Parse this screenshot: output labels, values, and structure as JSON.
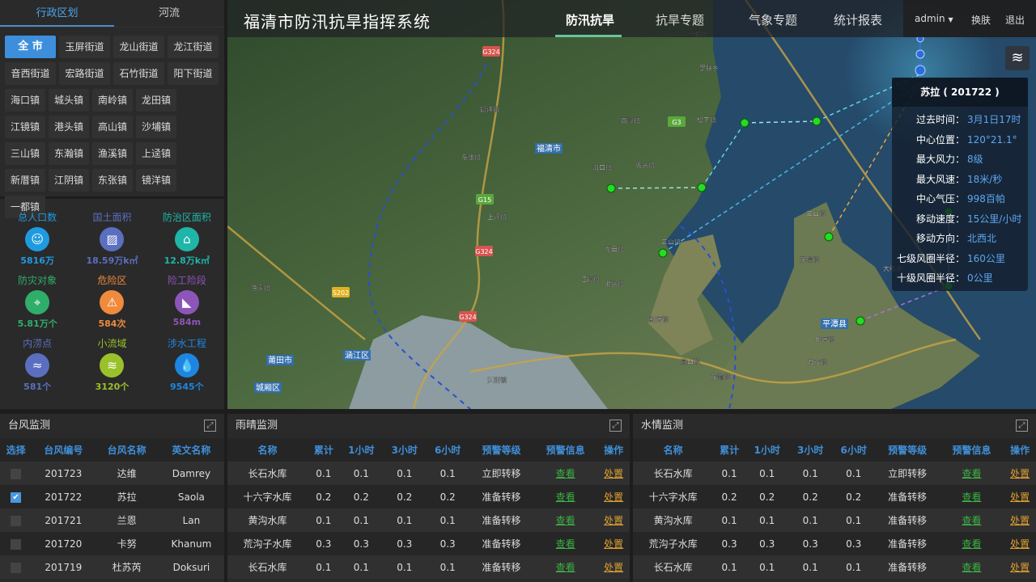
{
  "app_title": "福清市防汛抗旱指挥系统",
  "nav": [
    {
      "label": "防汛抗旱",
      "active": true
    },
    {
      "label": "抗旱专题"
    },
    {
      "label": "气象专题"
    },
    {
      "label": "统计报表"
    }
  ],
  "user": {
    "name": "admin",
    "dropdown_icon": "caret-down-icon",
    "skin": "换肤",
    "logout": "退出"
  },
  "left_tabs": [
    {
      "label": "行政区划",
      "active": true
    },
    {
      "label": "河流"
    }
  ],
  "areas": [
    "全 市",
    "玉屏街道",
    "龙山街道",
    "龙江街道",
    "音西街道",
    "宏路街道",
    "石竹街道",
    "阳下街道",
    "海口镇",
    "城头镇",
    "南岭镇",
    "龙田镇",
    "江镜镇",
    "港头镇",
    "高山镇",
    "沙埔镇",
    "三山镇",
    "东瀚镇",
    "渔溪镇",
    "上迳镇",
    "新厝镇",
    "江阴镇",
    "东张镇",
    "镜洋镇",
    "一都镇"
  ],
  "stats": [
    {
      "label": "总人口数",
      "value": "5816万",
      "color": "#1e9be0",
      "icon": "people-icon"
    },
    {
      "label": "国土面积",
      "value": "18.59万k㎡",
      "color": "#5b6fc0",
      "icon": "area-icon"
    },
    {
      "label": "防治区面积",
      "value": "12.8万k㎡",
      "color": "#1fb5a8",
      "icon": "house-icon"
    },
    {
      "label": "防灾对象",
      "value": "5.81万个",
      "color": "#2fae6a",
      "icon": "map-pin-icon"
    },
    {
      "label": "危险区",
      "value": "584次",
      "color": "#f08a3c",
      "icon": "warning-icon"
    },
    {
      "label": "险工险段",
      "value": "584m",
      "color": "#8e55b8",
      "icon": "slope-icon"
    },
    {
      "label": "内涝点",
      "value": "581个",
      "color": "#5b6fc0",
      "icon": "flood-icon"
    },
    {
      "label": "小流域",
      "value": "3120个",
      "color": "#9bc12a",
      "icon": "waves-icon"
    },
    {
      "label": "涉水工程",
      "value": "9545个",
      "color": "#1e86e0",
      "icon": "water-drop-icon"
    }
  ],
  "map": {
    "labels": [
      "福清市",
      "平潭县",
      "涵江区",
      "莆田市",
      "城厢区",
      "东张镇",
      "海口镇",
      "城头镇",
      "南岭镇",
      "龙田镇",
      "江镜镇",
      "港头镇",
      "三山镇",
      "上迳镇",
      "新厝镇",
      "江阴镇",
      "渔溪镇",
      "镜洋镇",
      "一都镇",
      "高山镇",
      "东瀚镇",
      "松下镇",
      "罗联乡",
      "三山镇",
      "大练乡",
      "苏澳镇",
      "北厝镇",
      "敖东镇"
    ],
    "roads": [
      "G324",
      "G324",
      "G324",
      "G15",
      "G3",
      "S202"
    ],
    "layers_icon": "layers-icon"
  },
  "typhoon_popup": {
    "title": "苏拉 ( 201722 )",
    "rows": [
      {
        "k": "过去时间：",
        "v": "3月1日17时"
      },
      {
        "k": "中心位置：",
        "v": "120°21.1°"
      },
      {
        "k": "最大风力：",
        "v": "8级"
      },
      {
        "k": "最大风速：",
        "v": "18米/秒"
      },
      {
        "k": "中心气压：",
        "v": "998百帕"
      },
      {
        "k": "移动速度：",
        "v": "15公里/小时"
      },
      {
        "k": "移动方向：",
        "v": "北西北"
      },
      {
        "k": "七级风圈半径：",
        "v": "160公里"
      },
      {
        "k": "十级风圈半径：",
        "v": "0公里"
      }
    ]
  },
  "typhoon": {
    "title": "台风监测",
    "headers": [
      "选择",
      "台风编号",
      "台风名称",
      "英文名称"
    ],
    "rows": [
      {
        "checked": false,
        "id": "201723",
        "name": "达维",
        "en": "Damrey"
      },
      {
        "checked": true,
        "id": "201722",
        "name": "苏拉",
        "en": "Saola"
      },
      {
        "checked": false,
        "id": "201721",
        "name": "兰恩",
        "en": "Lan"
      },
      {
        "checked": false,
        "id": "201720",
        "name": "卡努",
        "en": "Khanum"
      },
      {
        "checked": false,
        "id": "201719",
        "name": "杜苏芮",
        "en": "Doksuri"
      }
    ]
  },
  "rain": {
    "title": "雨晴监测",
    "headers": [
      "名称",
      "累计",
      "1小时",
      "3小时",
      "6小时",
      "预警等级",
      "预警信息",
      "操作"
    ],
    "rows": [
      [
        "长石水库",
        "0.1",
        "0.1",
        "0.1",
        "0.1",
        "立即转移",
        "查看",
        "处置"
      ],
      [
        "十六字水库",
        "0.2",
        "0.2",
        "0.2",
        "0.2",
        "准备转移",
        "查看",
        "处置"
      ],
      [
        "黄沟水库",
        "0.1",
        "0.1",
        "0.1",
        "0.1",
        "准备转移",
        "查看",
        "处置"
      ],
      [
        "荒沟子水库",
        "0.3",
        "0.3",
        "0.3",
        "0.3",
        "准备转移",
        "查看",
        "处置"
      ],
      [
        "长石水库",
        "0.1",
        "0.1",
        "0.1",
        "0.1",
        "准备转移",
        "查看",
        "处置"
      ]
    ]
  },
  "water": {
    "title": "水情监测",
    "headers": [
      "名称",
      "累计",
      "1小时",
      "3小时",
      "6小时",
      "预警等级",
      "预警信息",
      "操作"
    ],
    "rows": [
      [
        "长石水库",
        "0.1",
        "0.1",
        "0.1",
        "0.1",
        "立即转移",
        "查看",
        "处置"
      ],
      [
        "十六字水库",
        "0.2",
        "0.2",
        "0.2",
        "0.2",
        "准备转移",
        "查看",
        "处置"
      ],
      [
        "黄沟水库",
        "0.1",
        "0.1",
        "0.1",
        "0.1",
        "准备转移",
        "查看",
        "处置"
      ],
      [
        "荒沟子水库",
        "0.3",
        "0.3",
        "0.3",
        "0.3",
        "准备转移",
        "查看",
        "处置"
      ],
      [
        "长石水库",
        "0.1",
        "0.1",
        "0.1",
        "0.1",
        "准备转移",
        "查看",
        "处置"
      ]
    ]
  },
  "expand_icon": "expand-icon"
}
